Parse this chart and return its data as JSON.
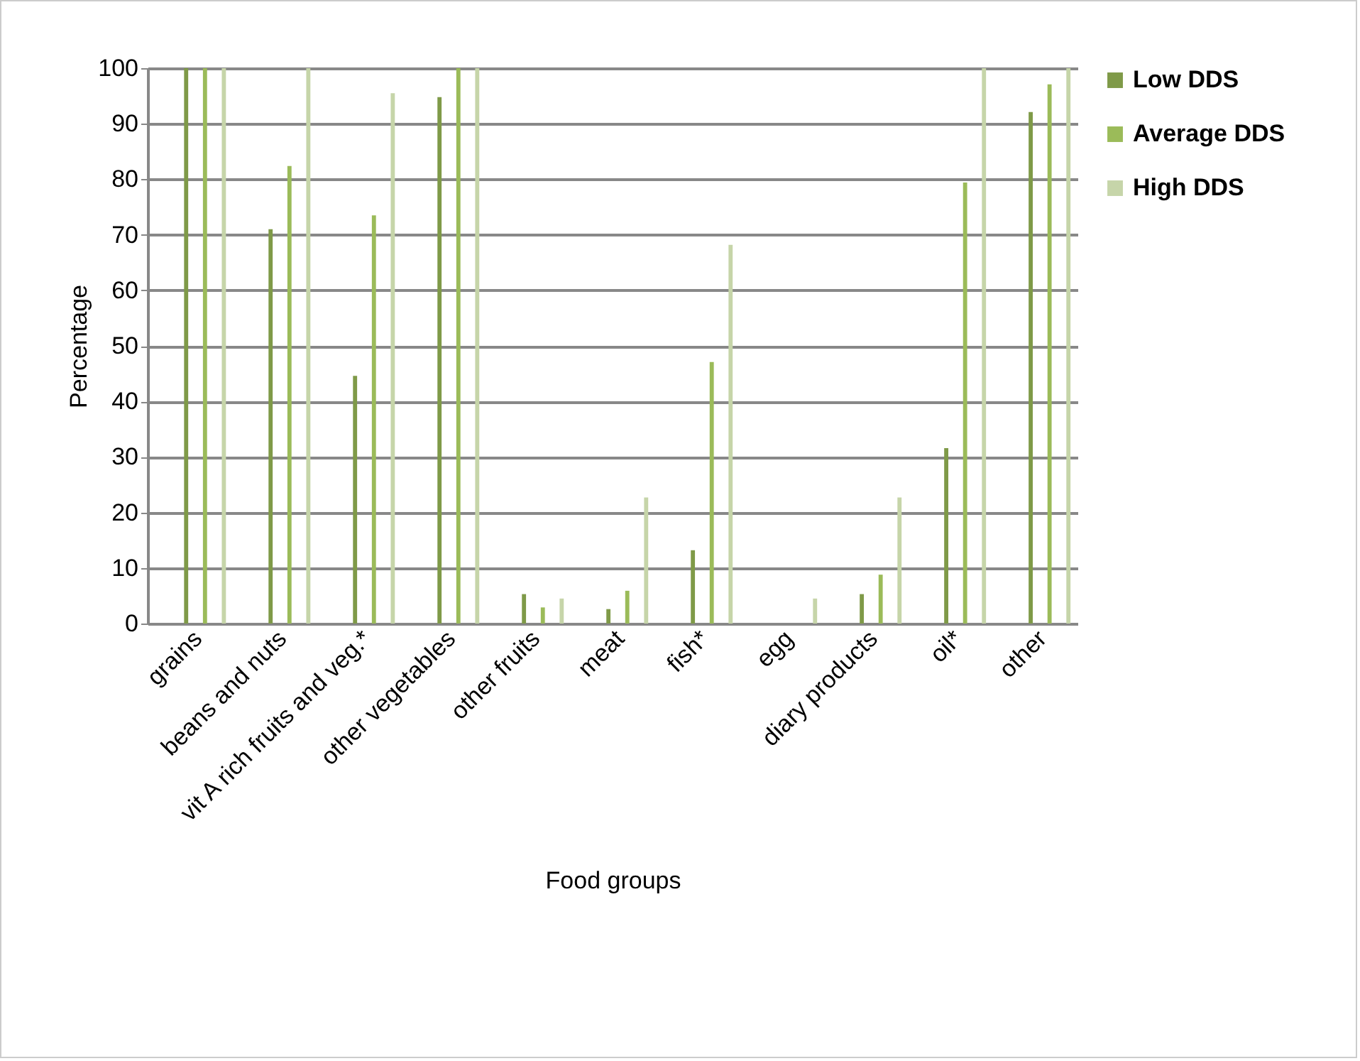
{
  "chart_data": {
    "type": "bar",
    "xlabel": "Food groups",
    "ylabel": "Percentage",
    "categories": [
      "grains",
      "beans and nuts",
      "vit A rich fruits and veg.*",
      "other vegetables",
      "other fruits",
      "meat",
      "fish*",
      "egg",
      "diary products",
      "oil*",
      "other"
    ],
    "series": [
      {
        "name": "Low DDS",
        "color": "#7f9a48",
        "values": [
          100,
          71,
          44.6,
          94.8,
          5.3,
          2.6,
          13.2,
          0,
          5.3,
          31.6,
          92.1
        ]
      },
      {
        "name": "Average DDS",
        "color": "#9bbb59",
        "values": [
          100,
          82.4,
          73.5,
          100,
          2.9,
          5.9,
          47.1,
          0,
          8.8,
          79.4,
          97.1
        ]
      },
      {
        "name": "High DDS",
        "color": "#c6d5a9",
        "values": [
          100,
          100,
          95.5,
          100,
          4.5,
          22.7,
          68.2,
          4.5,
          22.7,
          100,
          100
        ]
      }
    ],
    "ylim": [
      0,
      100
    ],
    "yticks": [
      0,
      10,
      20,
      30,
      40,
      50,
      60,
      70,
      80,
      90,
      100
    ],
    "grid": "y",
    "legend": "right"
  }
}
